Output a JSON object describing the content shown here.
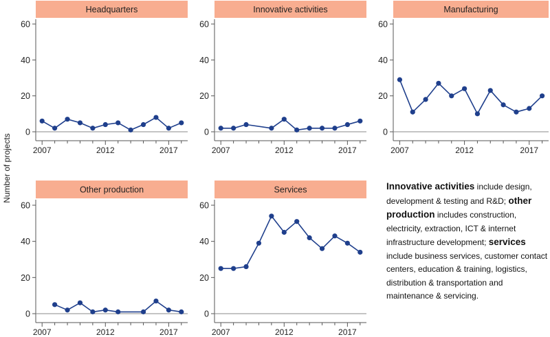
{
  "y_axis_label": "Number of projects",
  "colors": {
    "header_fill": "#f8ad90",
    "line": "#1f3f8c",
    "axis": "#555555"
  },
  "chart_data": [
    {
      "type": "line",
      "title": "Headquarters",
      "ylim": [
        0,
        60
      ],
      "yticks": [
        0,
        20,
        40,
        60
      ],
      "xticks": [
        2007,
        2012,
        2017
      ],
      "xlim": [
        2006.5,
        2018.5
      ],
      "x": [
        2007,
        2008,
        2009,
        2010,
        2011,
        2012,
        2013,
        2014,
        2015,
        2016,
        2017,
        2018
      ],
      "values": [
        6,
        2,
        7,
        5,
        2,
        4,
        5,
        1,
        4,
        8,
        2,
        5
      ]
    },
    {
      "type": "line",
      "title": "Innovative activities",
      "ylim": [
        0,
        60
      ],
      "yticks": [
        0,
        20,
        40,
        60
      ],
      "xticks": [
        2007,
        2012,
        2017
      ],
      "xlim": [
        2006.5,
        2018.5
      ],
      "x": [
        2007,
        2008,
        2009,
        2011,
        2012,
        2013,
        2014,
        2015,
        2016,
        2017,
        2018
      ],
      "values": [
        2,
        2,
        4,
        2,
        7,
        1,
        2,
        2,
        2,
        4,
        6
      ]
    },
    {
      "type": "line",
      "title": "Manufacturing",
      "ylim": [
        0,
        60
      ],
      "yticks": [
        0,
        20,
        40,
        60
      ],
      "xticks": [
        2007,
        2012,
        2017
      ],
      "xlim": [
        2006.5,
        2018.5
      ],
      "x": [
        2007,
        2008,
        2009,
        2010,
        2011,
        2012,
        2013,
        2014,
        2015,
        2016,
        2017,
        2018
      ],
      "values": [
        29,
        11,
        18,
        27,
        20,
        24,
        10,
        23,
        15,
        11,
        13,
        20
      ]
    },
    {
      "type": "line",
      "title": "Other production",
      "ylim": [
        0,
        60
      ],
      "yticks": [
        0,
        20,
        40,
        60
      ],
      "xticks": [
        2007,
        2012,
        2017
      ],
      "xlim": [
        2006.5,
        2018.5
      ],
      "x": [
        2008,
        2009,
        2010,
        2011,
        2012,
        2013,
        2015,
        2016,
        2017,
        2018
      ],
      "values": [
        5,
        2,
        6,
        1,
        2,
        1,
        1,
        7,
        2,
        1
      ]
    },
    {
      "type": "line",
      "title": "Services",
      "ylim": [
        0,
        60
      ],
      "yticks": [
        0,
        20,
        40,
        60
      ],
      "xticks": [
        2007,
        2012,
        2017
      ],
      "xlim": [
        2006.5,
        2018.5
      ],
      "x": [
        2007,
        2008,
        2009,
        2010,
        2011,
        2012,
        2013,
        2014,
        2015,
        2016,
        2017,
        2018
      ],
      "values": [
        25,
        25,
        26,
        39,
        54,
        45,
        51,
        42,
        36,
        43,
        39,
        34
      ]
    }
  ],
  "note": {
    "innovative_kw": "Innovative activities",
    "innovative_text": " include design, development & testing and R&D;",
    "other_kw": "other production",
    "other_text": " includes construction, electricity, extraction, ICT & internet infrastructure development;",
    "services_kw": "services",
    "services_text": " include business services, customer contact centers, education & training, logistics, distribution & transportation and maintenance & servicing."
  }
}
